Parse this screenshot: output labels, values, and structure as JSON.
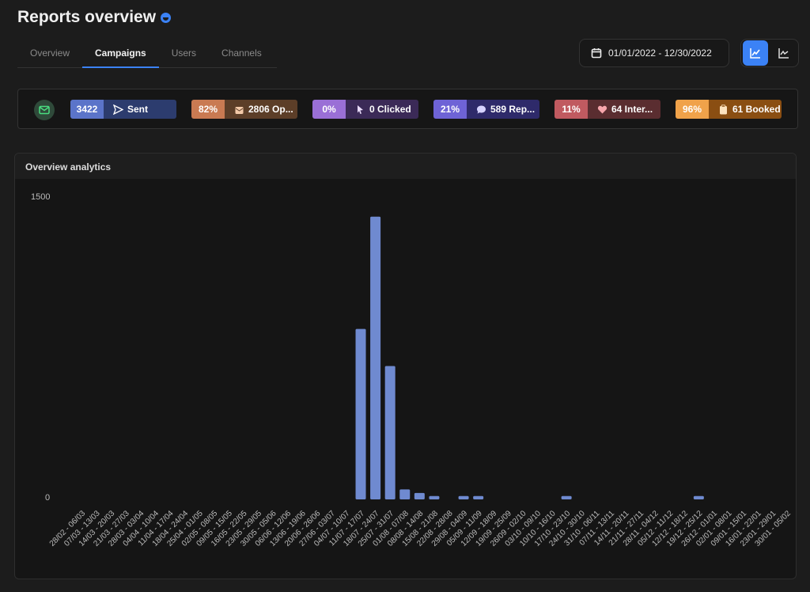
{
  "header": {
    "title": "Reports overview"
  },
  "tabs": [
    {
      "label": "Overview"
    },
    {
      "label": "Campaigns"
    },
    {
      "label": "Users"
    },
    {
      "label": "Channels"
    }
  ],
  "date_range": "01/01/2022 - 12/30/2022",
  "stats": [
    {
      "value": "3422",
      "label": "Sent",
      "icon": "send-icon",
      "left_color": "#5b74c9",
      "right_color": "#2c3c6e"
    },
    {
      "value": "82%",
      "label": "2806 Op...",
      "icon": "open-envelope-icon",
      "left_color": "#c97a52",
      "right_color": "#5c3e28"
    },
    {
      "value": "0%",
      "label": "0 Clicked",
      "icon": "cursor-click-icon",
      "left_color": "#9a6fd6",
      "right_color": "#3b2a57"
    },
    {
      "value": "21%",
      "label": "589 Rep...",
      "icon": "chat-bubble-icon",
      "left_color": "#6e63d6",
      "right_color": "#2e2a6a"
    },
    {
      "value": "11%",
      "label": "64 Inter...",
      "icon": "heart-icon",
      "left_color": "#c05a60",
      "right_color": "#5a2d30"
    },
    {
      "value": "96%",
      "label": "61 Booked",
      "icon": "clipboard-icon",
      "left_color": "#f0a24a",
      "right_color": "#8a4e12"
    }
  ],
  "panel": {
    "title": "Overview analytics"
  },
  "chart_data": {
    "type": "bar",
    "ylim": [
      0,
      1500
    ],
    "yticks": [
      "1500",
      "0"
    ],
    "bar_color": "#6f8ad0",
    "categories": [
      "28/02 - 06/03",
      "07/03 - 13/03",
      "14/03 - 20/03",
      "21/03 - 27/03",
      "28/03 - 03/04",
      "04/04 - 10/04",
      "11/04 - 17/04",
      "18/04 - 24/04",
      "25/04 - 01/05",
      "02/05 - 08/05",
      "09/05 - 15/05",
      "16/05 - 22/05",
      "23/05 - 29/05",
      "30/05 - 05/06",
      "06/06 - 12/06",
      "13/06 - 19/06",
      "20/06 - 26/06",
      "27/06 - 03/07",
      "04/07 - 10/07",
      "11/07 - 17/07",
      "18/07 - 24/07",
      "25/07 - 31/07",
      "01/08 - 07/08",
      "08/08 - 14/08",
      "15/08 - 21/08",
      "22/08 - 28/08",
      "29/08 - 04/09",
      "05/09 - 11/09",
      "12/09 - 18/09",
      "19/09 - 25/09",
      "26/09 - 02/10",
      "03/10 - 09/10",
      "10/10 - 16/10",
      "17/10 - 23/10",
      "24/10 - 30/10",
      "31/10 - 06/11",
      "07/11 - 13/11",
      "14/11 - 20/11",
      "21/11 - 27/11",
      "28/11 - 04/12",
      "05/12 - 11/12",
      "12/12 - 18/12",
      "19/12 - 25/12",
      "26/12 - 01/01",
      "02/01 - 08/01",
      "09/01 - 15/01",
      "16/01 - 22/01",
      "23/01 - 29/01",
      "30/01 - 05/02"
    ],
    "values": [
      0,
      0,
      0,
      0,
      0,
      0,
      0,
      0,
      0,
      0,
      0,
      0,
      0,
      0,
      0,
      0,
      0,
      0,
      0,
      850,
      1410,
      665,
      50,
      32,
      17,
      0,
      17,
      17,
      0,
      0,
      0,
      0,
      0,
      17,
      0,
      0,
      0,
      0,
      0,
      0,
      0,
      0,
      17,
      0,
      0,
      0,
      0,
      0,
      0
    ]
  }
}
